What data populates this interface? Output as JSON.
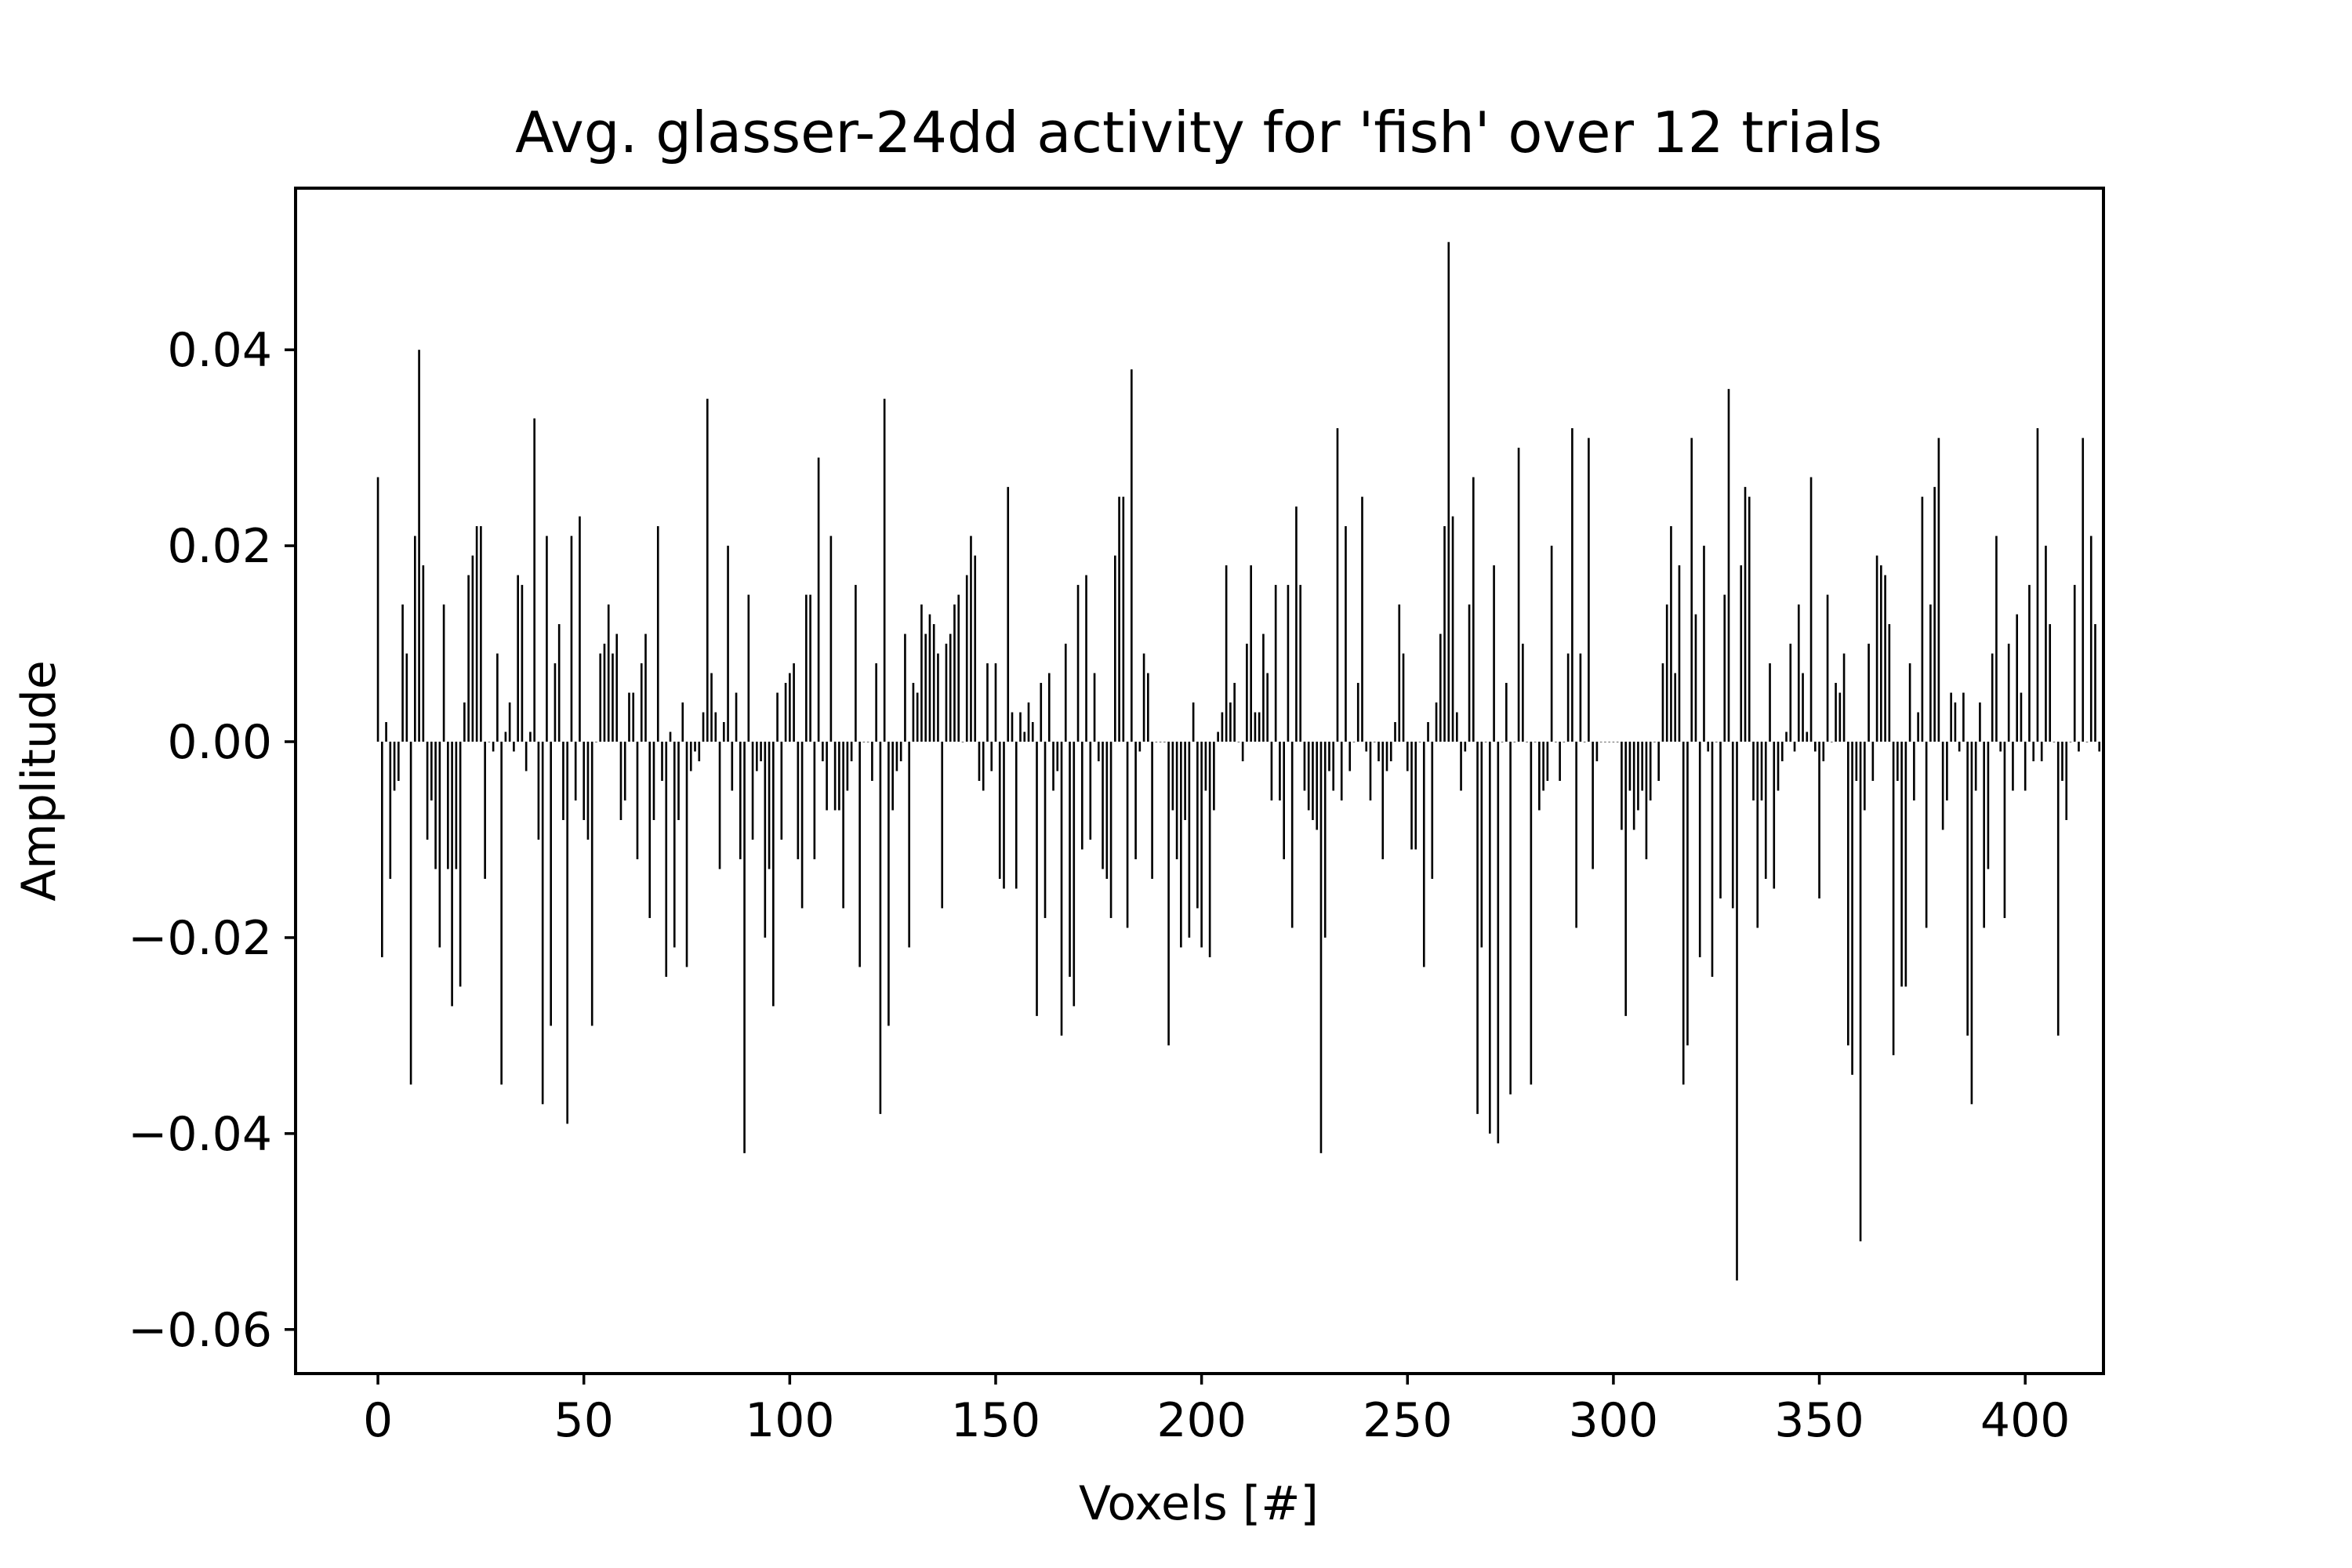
{
  "chart_data": {
    "type": "bar",
    "title": "Avg. glasser-24dd activity for 'fish' over 12 trials",
    "xlabel": "Voxels [#]",
    "ylabel": "Amplitude",
    "xlim": [
      -20,
      419
    ],
    "ylim": [
      -0.0645,
      0.0565
    ],
    "grid": false,
    "bar_color": "#000000",
    "x_ticks": [
      0,
      50,
      100,
      150,
      200,
      250,
      300,
      350,
      400
    ],
    "x_tick_labels": [
      "0",
      "50",
      "100",
      "150",
      "200",
      "250",
      "300",
      "350",
      "400"
    ],
    "y_ticks": [
      -0.06,
      -0.04,
      -0.02,
      0.0,
      0.02,
      0.04
    ],
    "y_tick_labels": [
      "−0.06",
      "−0.04",
      "−0.02",
      "0.00",
      "0.02",
      "0.04"
    ],
    "x_start": 0,
    "values": [
      0.027,
      -0.022,
      0.002,
      -0.014,
      -0.005,
      -0.004,
      0.014,
      0.009,
      -0.035,
      0.021,
      0.04,
      0.018,
      -0.01,
      -0.006,
      -0.013,
      -0.021,
      0.014,
      -0.013,
      -0.027,
      -0.013,
      -0.025,
      0.004,
      0.017,
      0.019,
      0.022,
      0.022,
      -0.014,
      0.0,
      -0.001,
      0.009,
      -0.035,
      0.001,
      0.004,
      -0.001,
      0.017,
      0.016,
      -0.003,
      0.001,
      0.033,
      -0.01,
      -0.037,
      0.021,
      -0.029,
      0.008,
      0.012,
      -0.008,
      -0.039,
      0.021,
      -0.006,
      0.023,
      -0.008,
      -0.01,
      -0.029,
      0.0,
      0.009,
      0.01,
      0.014,
      0.009,
      0.011,
      -0.008,
      -0.006,
      0.005,
      0.005,
      -0.012,
      0.008,
      0.011,
      -0.018,
      -0.008,
      0.022,
      -0.004,
      -0.024,
      0.001,
      -0.021,
      -0.008,
      0.004,
      -0.023,
      -0.003,
      -0.001,
      -0.002,
      0.003,
      0.035,
      0.007,
      0.003,
      -0.013,
      0.002,
      0.02,
      -0.005,
      0.005,
      -0.012,
      -0.042,
      0.015,
      -0.01,
      -0.003,
      -0.002,
      -0.02,
      -0.013,
      -0.027,
      0.005,
      -0.01,
      0.006,
      0.007,
      0.008,
      -0.012,
      -0.017,
      0.015,
      0.015,
      -0.012,
      0.029,
      -0.002,
      -0.007,
      0.021,
      -0.007,
      -0.007,
      -0.017,
      -0.005,
      -0.002,
      0.016,
      -0.023,
      0.0,
      0.0,
      -0.004,
      0.008,
      -0.038,
      0.035,
      -0.029,
      -0.007,
      -0.003,
      -0.002,
      0.011,
      -0.021,
      0.006,
      0.005,
      0.014,
      0.011,
      0.013,
      0.012,
      0.009,
      -0.017,
      0.01,
      0.011,
      0.014,
      0.015,
      0.0,
      0.017,
      0.021,
      0.019,
      -0.004,
      -0.005,
      0.008,
      -0.003,
      0.008,
      -0.014,
      -0.015,
      0.026,
      0.003,
      -0.015,
      0.003,
      0.001,
      0.004,
      0.002,
      -0.028,
      0.006,
      -0.018,
      0.007,
      -0.005,
      -0.003,
      -0.03,
      0.01,
      -0.024,
      -0.027,
      0.016,
      -0.011,
      0.017,
      -0.01,
      0.007,
      -0.002,
      -0.013,
      -0.014,
      -0.018,
      0.019,
      0.025,
      0.025,
      -0.019,
      0.038,
      -0.012,
      -0.001,
      0.009,
      0.007,
      -0.014,
      0.0,
      0.0,
      0.0,
      -0.031,
      -0.007,
      -0.012,
      -0.021,
      -0.008,
      -0.02,
      0.004,
      -0.017,
      -0.021,
      -0.005,
      -0.022,
      -0.007,
      0.001,
      0.003,
      0.018,
      0.004,
      0.006,
      0.0,
      -0.002,
      0.01,
      0.018,
      0.003,
      0.003,
      0.011,
      0.007,
      -0.006,
      0.016,
      -0.006,
      -0.012,
      0.016,
      -0.019,
      0.024,
      0.016,
      -0.005,
      -0.007,
      -0.008,
      -0.009,
      -0.042,
      -0.02,
      -0.003,
      -0.005,
      0.032,
      -0.006,
      0.022,
      -0.003,
      0.0,
      0.006,
      0.025,
      -0.001,
      -0.006,
      0.0,
      -0.002,
      -0.012,
      -0.003,
      -0.002,
      0.002,
      0.014,
      0.009,
      -0.003,
      -0.011,
      -0.011,
      0.0,
      -0.023,
      0.002,
      -0.014,
      0.004,
      0.011,
      0.022,
      0.051,
      0.023,
      0.003,
      -0.005,
      -0.001,
      0.014,
      0.027,
      -0.038,
      -0.021,
      0.0,
      -0.04,
      0.018,
      -0.041,
      0.0,
      0.006,
      -0.036,
      0.0,
      0.03,
      0.01,
      0.0,
      -0.035,
      0.0,
      -0.007,
      -0.005,
      -0.004,
      0.02,
      0.0,
      -0.004,
      0.0,
      0.009,
      0.032,
      -0.019,
      0.009,
      0.0,
      0.031,
      -0.013,
      -0.002,
      0.0,
      0.0,
      0.0,
      0.0,
      0.0,
      -0.009,
      -0.028,
      -0.005,
      -0.009,
      -0.007,
      -0.005,
      -0.012,
      -0.006,
      0.0,
      -0.004,
      0.008,
      0.014,
      0.022,
      0.007,
      0.018,
      -0.035,
      -0.031,
      0.031,
      0.013,
      -0.022,
      0.02,
      -0.001,
      -0.024,
      0.0,
      -0.016,
      0.015,
      0.036,
      -0.017,
      -0.055,
      0.018,
      0.026,
      0.025,
      -0.006,
      -0.019,
      -0.006,
      -0.014,
      0.008,
      -0.015,
      -0.005,
      -0.002,
      0.001,
      0.01,
      -0.001,
      0.014,
      0.007,
      0.001,
      0.027,
      -0.001,
      -0.016,
      -0.002,
      0.015,
      0.0,
      0.006,
      0.005,
      0.009,
      -0.031,
      -0.034,
      -0.004,
      -0.051,
      -0.007,
      0.01,
      -0.004,
      0.019,
      0.018,
      0.017,
      0.012,
      -0.032,
      -0.004,
      -0.025,
      -0.025,
      0.008,
      -0.006,
      0.003,
      0.025,
      -0.019,
      0.014,
      0.026,
      0.031,
      -0.009,
      -0.006,
      0.005,
      0.004,
      -0.001,
      0.005,
      -0.03,
      -0.037,
      -0.005,
      0.004,
      -0.019,
      -0.013,
      0.009,
      0.021,
      -0.001,
      -0.018,
      0.01,
      -0.005,
      0.013,
      0.005,
      -0.005,
      0.016,
      -0.002,
      0.032,
      -0.002,
      0.02,
      0.012,
      0.0,
      -0.03,
      -0.004,
      -0.008,
      0.0,
      0.016,
      -0.001,
      0.031,
      0.0,
      0.021,
      0.012,
      -0.001,
      0.0
    ]
  }
}
